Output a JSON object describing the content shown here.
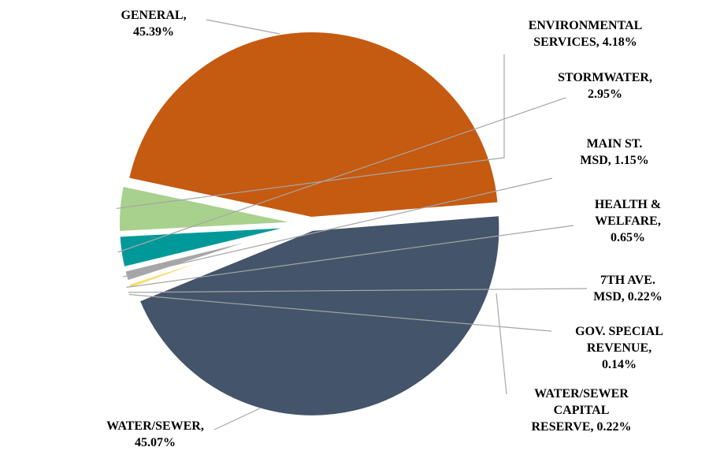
{
  "chart_data": {
    "type": "pie",
    "slices": [
      {
        "name": "GENERAL",
        "value": 45.39,
        "color": "#c55a11",
        "label_lines": [
          "GENERAL,",
          "45.39%"
        ]
      },
      {
        "name": "ENVIRONMENTAL SERVICES",
        "value": 4.18,
        "color": "#a9d18e",
        "label_lines": [
          "ENVIRONMENTAL",
          "SERVICES, 4.18%"
        ]
      },
      {
        "name": "STORMWATER",
        "value": 2.95,
        "color": "#009999",
        "label_lines": [
          "STORMWATER,",
          "2.95%"
        ]
      },
      {
        "name": "MAIN ST. MSD",
        "value": 1.15,
        "color": "#a6a6a6",
        "label_lines": [
          "MAIN ST.",
          "MSD, 1.15%"
        ]
      },
      {
        "name": "HEALTH & WELFARE",
        "value": 0.65,
        "color": "#ffd966",
        "label_lines": [
          "HEALTH  &",
          "WELFARE,",
          "0.65%"
        ]
      },
      {
        "name": "7TH AVE. MSD",
        "value": 0.22,
        "color": "#f4b183",
        "label_lines": [
          "7TH AVE.",
          "MSD, 0.22%"
        ]
      },
      {
        "name": "GOV. SPECIAL REVENUE",
        "value": 0.14,
        "color": "#bdd7ee",
        "label_lines": [
          "GOV. SPECIAL",
          "REVENUE,",
          "0.14%"
        ]
      },
      {
        "name": "WATER/SEWER CAPITAL RESERVE",
        "value": 0.22,
        "color": "#d9d9d9",
        "label_lines": [
          "WATER/SEWER",
          "CAPITAL",
          "RESERVE,  0.22%"
        ]
      },
      {
        "name": "WATER/SEWER",
        "value": 45.07,
        "color": "#44546a",
        "label_lines": [
          "WATER/SEWER,",
          "45.07%"
        ]
      }
    ],
    "legend": "none",
    "data_labels": "outside with leader lines"
  }
}
